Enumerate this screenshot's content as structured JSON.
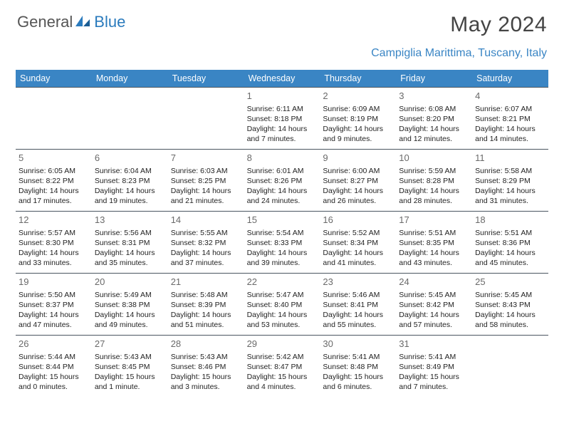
{
  "logo": {
    "general": "General",
    "blue": "Blue"
  },
  "title": "May 2024",
  "location": "Campiglia Marittima, Tuscany, Italy",
  "colors": {
    "header_bar": "#3a85c4",
    "header_text": "#ffffff",
    "row_border": "#4a5560",
    "logo_blue": "#2b7bbd",
    "title_color": "#444444",
    "body_text": "#333333",
    "background": "#ffffff"
  },
  "weekdays": [
    "Sunday",
    "Monday",
    "Tuesday",
    "Wednesday",
    "Thursday",
    "Friday",
    "Saturday"
  ],
  "weeks": [
    [
      {
        "num": "",
        "sunrise": "",
        "sunset": "",
        "daylight": ""
      },
      {
        "num": "",
        "sunrise": "",
        "sunset": "",
        "daylight": ""
      },
      {
        "num": "",
        "sunrise": "",
        "sunset": "",
        "daylight": ""
      },
      {
        "num": "1",
        "sunrise": "Sunrise: 6:11 AM",
        "sunset": "Sunset: 8:18 PM",
        "daylight": "Daylight: 14 hours and 7 minutes."
      },
      {
        "num": "2",
        "sunrise": "Sunrise: 6:09 AM",
        "sunset": "Sunset: 8:19 PM",
        "daylight": "Daylight: 14 hours and 9 minutes."
      },
      {
        "num": "3",
        "sunrise": "Sunrise: 6:08 AM",
        "sunset": "Sunset: 8:20 PM",
        "daylight": "Daylight: 14 hours and 12 minutes."
      },
      {
        "num": "4",
        "sunrise": "Sunrise: 6:07 AM",
        "sunset": "Sunset: 8:21 PM",
        "daylight": "Daylight: 14 hours and 14 minutes."
      }
    ],
    [
      {
        "num": "5",
        "sunrise": "Sunrise: 6:05 AM",
        "sunset": "Sunset: 8:22 PM",
        "daylight": "Daylight: 14 hours and 17 minutes."
      },
      {
        "num": "6",
        "sunrise": "Sunrise: 6:04 AM",
        "sunset": "Sunset: 8:23 PM",
        "daylight": "Daylight: 14 hours and 19 minutes."
      },
      {
        "num": "7",
        "sunrise": "Sunrise: 6:03 AM",
        "sunset": "Sunset: 8:25 PM",
        "daylight": "Daylight: 14 hours and 21 minutes."
      },
      {
        "num": "8",
        "sunrise": "Sunrise: 6:01 AM",
        "sunset": "Sunset: 8:26 PM",
        "daylight": "Daylight: 14 hours and 24 minutes."
      },
      {
        "num": "9",
        "sunrise": "Sunrise: 6:00 AM",
        "sunset": "Sunset: 8:27 PM",
        "daylight": "Daylight: 14 hours and 26 minutes."
      },
      {
        "num": "10",
        "sunrise": "Sunrise: 5:59 AM",
        "sunset": "Sunset: 8:28 PM",
        "daylight": "Daylight: 14 hours and 28 minutes."
      },
      {
        "num": "11",
        "sunrise": "Sunrise: 5:58 AM",
        "sunset": "Sunset: 8:29 PM",
        "daylight": "Daylight: 14 hours and 31 minutes."
      }
    ],
    [
      {
        "num": "12",
        "sunrise": "Sunrise: 5:57 AM",
        "sunset": "Sunset: 8:30 PM",
        "daylight": "Daylight: 14 hours and 33 minutes."
      },
      {
        "num": "13",
        "sunrise": "Sunrise: 5:56 AM",
        "sunset": "Sunset: 8:31 PM",
        "daylight": "Daylight: 14 hours and 35 minutes."
      },
      {
        "num": "14",
        "sunrise": "Sunrise: 5:55 AM",
        "sunset": "Sunset: 8:32 PM",
        "daylight": "Daylight: 14 hours and 37 minutes."
      },
      {
        "num": "15",
        "sunrise": "Sunrise: 5:54 AM",
        "sunset": "Sunset: 8:33 PM",
        "daylight": "Daylight: 14 hours and 39 minutes."
      },
      {
        "num": "16",
        "sunrise": "Sunrise: 5:52 AM",
        "sunset": "Sunset: 8:34 PM",
        "daylight": "Daylight: 14 hours and 41 minutes."
      },
      {
        "num": "17",
        "sunrise": "Sunrise: 5:51 AM",
        "sunset": "Sunset: 8:35 PM",
        "daylight": "Daylight: 14 hours and 43 minutes."
      },
      {
        "num": "18",
        "sunrise": "Sunrise: 5:51 AM",
        "sunset": "Sunset: 8:36 PM",
        "daylight": "Daylight: 14 hours and 45 minutes."
      }
    ],
    [
      {
        "num": "19",
        "sunrise": "Sunrise: 5:50 AM",
        "sunset": "Sunset: 8:37 PM",
        "daylight": "Daylight: 14 hours and 47 minutes."
      },
      {
        "num": "20",
        "sunrise": "Sunrise: 5:49 AM",
        "sunset": "Sunset: 8:38 PM",
        "daylight": "Daylight: 14 hours and 49 minutes."
      },
      {
        "num": "21",
        "sunrise": "Sunrise: 5:48 AM",
        "sunset": "Sunset: 8:39 PM",
        "daylight": "Daylight: 14 hours and 51 minutes."
      },
      {
        "num": "22",
        "sunrise": "Sunrise: 5:47 AM",
        "sunset": "Sunset: 8:40 PM",
        "daylight": "Daylight: 14 hours and 53 minutes."
      },
      {
        "num": "23",
        "sunrise": "Sunrise: 5:46 AM",
        "sunset": "Sunset: 8:41 PM",
        "daylight": "Daylight: 14 hours and 55 minutes."
      },
      {
        "num": "24",
        "sunrise": "Sunrise: 5:45 AM",
        "sunset": "Sunset: 8:42 PM",
        "daylight": "Daylight: 14 hours and 57 minutes."
      },
      {
        "num": "25",
        "sunrise": "Sunrise: 5:45 AM",
        "sunset": "Sunset: 8:43 PM",
        "daylight": "Daylight: 14 hours and 58 minutes."
      }
    ],
    [
      {
        "num": "26",
        "sunrise": "Sunrise: 5:44 AM",
        "sunset": "Sunset: 8:44 PM",
        "daylight": "Daylight: 15 hours and 0 minutes."
      },
      {
        "num": "27",
        "sunrise": "Sunrise: 5:43 AM",
        "sunset": "Sunset: 8:45 PM",
        "daylight": "Daylight: 15 hours and 1 minute."
      },
      {
        "num": "28",
        "sunrise": "Sunrise: 5:43 AM",
        "sunset": "Sunset: 8:46 PM",
        "daylight": "Daylight: 15 hours and 3 minutes."
      },
      {
        "num": "29",
        "sunrise": "Sunrise: 5:42 AM",
        "sunset": "Sunset: 8:47 PM",
        "daylight": "Daylight: 15 hours and 4 minutes."
      },
      {
        "num": "30",
        "sunrise": "Sunrise: 5:41 AM",
        "sunset": "Sunset: 8:48 PM",
        "daylight": "Daylight: 15 hours and 6 minutes."
      },
      {
        "num": "31",
        "sunrise": "Sunrise: 5:41 AM",
        "sunset": "Sunset: 8:49 PM",
        "daylight": "Daylight: 15 hours and 7 minutes."
      },
      {
        "num": "",
        "sunrise": "",
        "sunset": "",
        "daylight": ""
      }
    ]
  ]
}
